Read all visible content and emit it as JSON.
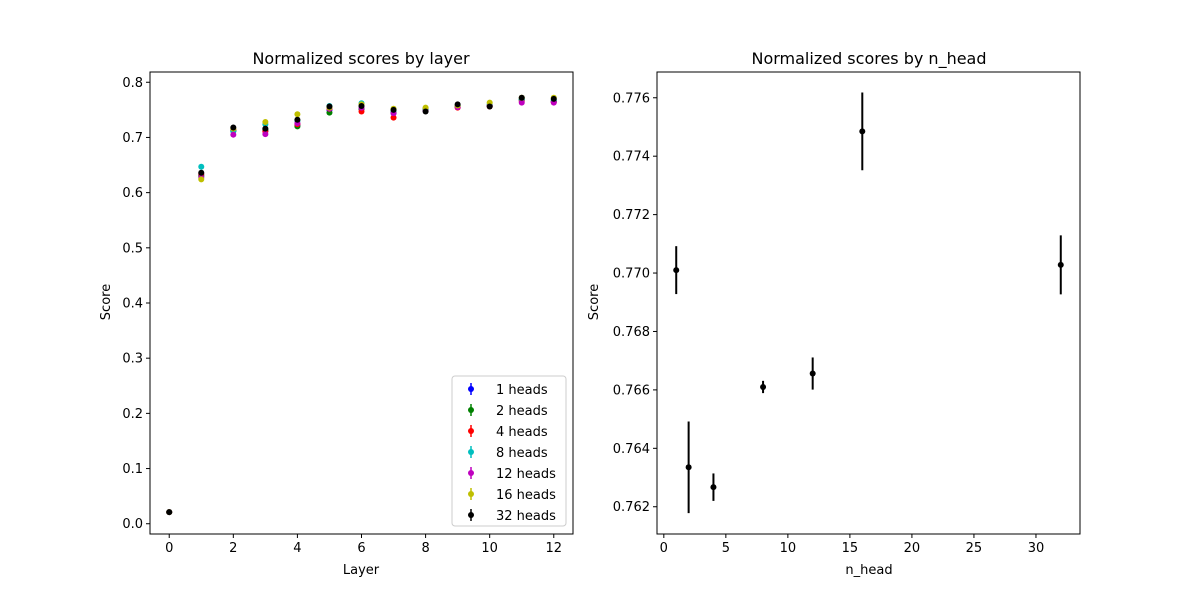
{
  "figure": {
    "background": "#ffffff"
  },
  "chart_data": [
    {
      "type": "scatter",
      "title": "Normalized scores by layer",
      "xlabel": "Layer",
      "ylabel": "Score",
      "xlim": [
        -0.6,
        12.6
      ],
      "ylim": [
        -0.0186,
        0.8186
      ],
      "xticks": [
        0,
        2,
        4,
        6,
        8,
        10,
        12
      ],
      "yticks": [
        0.0,
        0.1,
        0.2,
        0.3,
        0.4,
        0.5,
        0.6,
        0.7,
        0.8
      ],
      "xtick_labels": [
        "0",
        "2",
        "4",
        "6",
        "8",
        "10",
        "12"
      ],
      "ytick_labels": [
        "0.0",
        "0.1",
        "0.2",
        "0.3",
        "0.4",
        "0.5",
        "0.6",
        "0.7",
        "0.8"
      ],
      "grid": false,
      "legend": "lower-right",
      "x": [
        0,
        1,
        2,
        3,
        4,
        5,
        6,
        7,
        8,
        9,
        10,
        11,
        12
      ],
      "series": [
        {
          "name": "1 heads",
          "color": "#0000ff",
          "values": [
            0.021,
            0.632,
            0.712,
            0.712,
            0.722,
            0.75,
            0.752,
            0.744,
            0.75,
            0.757,
            0.757,
            0.768,
            0.765
          ]
        },
        {
          "name": "2 heads",
          "color": "#008000",
          "values": [
            0.021,
            0.63,
            0.712,
            0.714,
            0.72,
            0.745,
            0.752,
            0.746,
            0.75,
            0.756,
            0.758,
            0.769,
            0.766
          ]
        },
        {
          "name": "4 heads",
          "color": "#ff0000",
          "values": [
            0.021,
            0.634,
            0.714,
            0.711,
            0.724,
            0.752,
            0.747,
            0.736,
            0.752,
            0.754,
            0.756,
            0.766,
            0.764
          ]
        },
        {
          "name": "8 heads",
          "color": "#00bfbf",
          "values": [
            0.021,
            0.647,
            0.711,
            0.724,
            0.73,
            0.757,
            0.762,
            0.748,
            0.751,
            0.758,
            0.76,
            0.77,
            0.768
          ]
        },
        {
          "name": "12 heads",
          "color": "#bf00bf",
          "values": [
            0.021,
            0.627,
            0.705,
            0.706,
            0.726,
            0.752,
            0.754,
            0.744,
            0.748,
            0.755,
            0.757,
            0.763,
            0.763
          ]
        },
        {
          "name": "16 heads",
          "color": "#bfbf00",
          "values": [
            0.021,
            0.624,
            0.716,
            0.728,
            0.742,
            0.754,
            0.76,
            0.752,
            0.754,
            0.758,
            0.763,
            0.772,
            0.772
          ]
        },
        {
          "name": "32 heads",
          "color": "#000000",
          "values": [
            0.021,
            0.636,
            0.718,
            0.716,
            0.732,
            0.756,
            0.757,
            0.75,
            0.747,
            0.76,
            0.756,
            0.772,
            0.77
          ]
        }
      ]
    },
    {
      "type": "scatter",
      "title": "Normalized scores by n_head",
      "xlabel": "n_head",
      "ylabel": "Score",
      "xlim": [
        -0.55,
        33.55
      ],
      "ylim": [
        0.761067,
        0.776882
      ],
      "xticks": [
        0,
        5,
        10,
        15,
        20,
        25,
        30
      ],
      "yticks": [
        0.762,
        0.764,
        0.766,
        0.768,
        0.77,
        0.772,
        0.774,
        0.776
      ],
      "xtick_labels": [
        "0",
        "5",
        "10",
        "15",
        "20",
        "25",
        "30"
      ],
      "ytick_labels": [
        "0.762",
        "0.764",
        "0.766",
        "0.768",
        "0.770",
        "0.772",
        "0.774",
        "0.776"
      ],
      "grid": false,
      "color": "#000000",
      "points": [
        {
          "x": 1,
          "y": 0.7701,
          "err": 0.00082
        },
        {
          "x": 2,
          "y": 0.76335,
          "err": 0.00157
        },
        {
          "x": 4,
          "y": 0.76267,
          "err": 0.00047
        },
        {
          "x": 8,
          "y": 0.7661,
          "err": 0.00021
        },
        {
          "x": 12,
          "y": 0.76656,
          "err": 0.00055
        },
        {
          "x": 16,
          "y": 0.77485,
          "err": 0.00133
        },
        {
          "x": 32,
          "y": 0.77028,
          "err": 0.00101
        }
      ]
    }
  ]
}
